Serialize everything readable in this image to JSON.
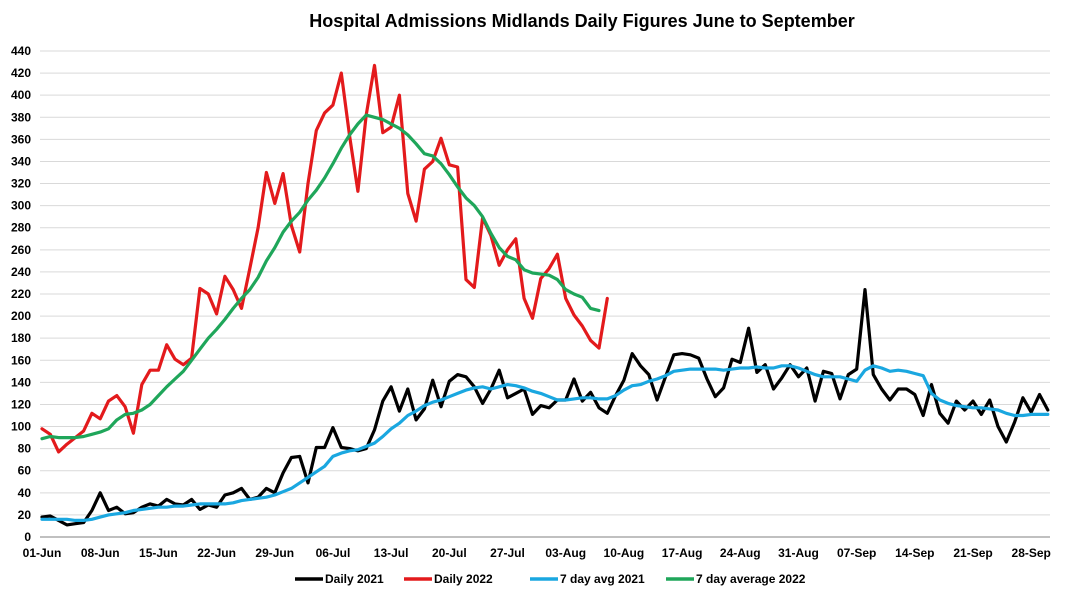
{
  "chart_data": {
    "type": "line",
    "title": "Hospital Admissions Midlands Daily Figures June to September",
    "xlabel": "",
    "ylabel": "",
    "ylim": [
      0,
      440
    ],
    "ytick_step": 20,
    "x_day_count": 122,
    "x_ticks": [
      {
        "day": 0,
        "label": "01-Jun"
      },
      {
        "day": 7,
        "label": "08-Jun"
      },
      {
        "day": 14,
        "label": "15-Jun"
      },
      {
        "day": 21,
        "label": "22-Jun"
      },
      {
        "day": 28,
        "label": "29-Jun"
      },
      {
        "day": 35,
        "label": "06-Jul"
      },
      {
        "day": 42,
        "label": "13-Jul"
      },
      {
        "day": 49,
        "label": "20-Jul"
      },
      {
        "day": 56,
        "label": "27-Jul"
      },
      {
        "day": 63,
        "label": "03-Aug"
      },
      {
        "day": 70,
        "label": "10-Aug"
      },
      {
        "day": 77,
        "label": "17-Aug"
      },
      {
        "day": 84,
        "label": "24-Aug"
      },
      {
        "day": 91,
        "label": "31-Aug"
      },
      {
        "day": 98,
        "label": "07-Sep"
      },
      {
        "day": 105,
        "label": "14-Sep"
      },
      {
        "day": 112,
        "label": "21-Sep"
      },
      {
        "day": 119,
        "label": "28-Sep"
      }
    ],
    "legend_position": "bottom",
    "series": [
      {
        "name": "Daily 2021",
        "color": "#000000",
        "values": [
          18,
          19,
          15,
          11,
          12,
          13,
          24,
          40,
          24,
          27,
          21,
          22,
          27,
          30,
          28,
          34,
          30,
          29,
          34,
          25,
          29,
          27,
          38,
          40,
          44,
          34,
          36,
          44,
          40,
          58,
          72,
          73,
          49,
          81,
          81,
          99,
          81,
          80,
          78,
          80,
          97,
          123,
          136,
          114,
          134,
          106,
          116,
          142,
          118,
          141,
          147,
          145,
          136,
          121,
          134,
          151,
          126,
          130,
          134,
          111,
          119,
          117,
          124,
          124,
          143,
          123,
          131,
          117,
          112,
          128,
          142,
          166,
          155,
          147,
          124,
          145,
          165,
          166,
          165,
          162,
          143,
          127,
          135,
          161,
          158,
          189,
          149,
          156,
          134,
          144,
          156,
          145,
          153,
          123,
          150,
          148,
          125,
          147,
          152,
          224,
          147,
          134,
          124,
          134,
          134,
          129,
          110,
          138,
          112,
          103,
          123,
          115,
          123,
          111,
          124,
          100,
          86,
          104,
          126,
          113,
          129,
          115
        ]
      },
      {
        "name": "Daily 2022",
        "color": "#e31a1c",
        "values": [
          98,
          93,
          77,
          84,
          90,
          96,
          112,
          107,
          123,
          128,
          118,
          94,
          138,
          151,
          151,
          174,
          161,
          156,
          162,
          225,
          220,
          202,
          236,
          224,
          207,
          243,
          280,
          330,
          302,
          329,
          282,
          258,
          320,
          368,
          384,
          391,
          420,
          363,
          313,
          382,
          427,
          366,
          371,
          400,
          311,
          286,
          333,
          340,
          361,
          337,
          335,
          233,
          226,
          289,
          273,
          246,
          260,
          270,
          216,
          198,
          234,
          243,
          256,
          216,
          201,
          191,
          178,
          171,
          216
        ]
      },
      {
        "name": "7 day avg 2021",
        "color": "#1aa7e0",
        "values": [
          16,
          16,
          16,
          16,
          15,
          15,
          16,
          18,
          20,
          21,
          22,
          24,
          25,
          26,
          27,
          27,
          28,
          28,
          29,
          30,
          30,
          30,
          30,
          31,
          33,
          34,
          35,
          36,
          38,
          41,
          44,
          49,
          54,
          59,
          64,
          73,
          76,
          78,
          79,
          82,
          85,
          91,
          98,
          103,
          110,
          114,
          119,
          122,
          124,
          127,
          130,
          133,
          135,
          136,
          134,
          136,
          138,
          137,
          135,
          132,
          130,
          127,
          124,
          124,
          125,
          126,
          126,
          125,
          125,
          128,
          133,
          137,
          138,
          141,
          143,
          146,
          150,
          151,
          152,
          152,
          152,
          152,
          151,
          152,
          153,
          153,
          154,
          153,
          153,
          155,
          155,
          153,
          150,
          147,
          145,
          145,
          145,
          143,
          141,
          151,
          155,
          153,
          150,
          151,
          150,
          148,
          146,
          130,
          124,
          121,
          119,
          118,
          117,
          117,
          116,
          115,
          112,
          110,
          110,
          111,
          111,
          111
        ]
      },
      {
        "name": "7 day average 2022",
        "color": "#1fa65a",
        "values": [
          89,
          91,
          90,
          90,
          90,
          91,
          93,
          95,
          98,
          106,
          111,
          112,
          115,
          120,
          128,
          136,
          143,
          150,
          160,
          170,
          180,
          188,
          197,
          207,
          216,
          224,
          235,
          250,
          262,
          276,
          286,
          294,
          305,
          314,
          325,
          338,
          352,
          364,
          374,
          382,
          380,
          378,
          374,
          370,
          364,
          356,
          347,
          345,
          338,
          328,
          317,
          307,
          300,
          290,
          275,
          262,
          254,
          251,
          242,
          239,
          238,
          237,
          233,
          224,
          220,
          217,
          207,
          205
        ]
      }
    ]
  }
}
